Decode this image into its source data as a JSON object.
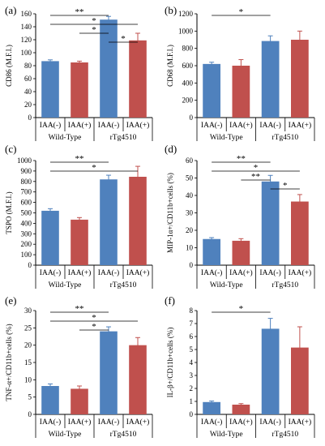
{
  "colors": {
    "blue": "#4f81bd",
    "red": "#c0504d",
    "axis": "#000000"
  },
  "chart_data": [
    {
      "type": "bar",
      "panel_label": "(a)",
      "ylabel": "CD86 (M.F.I.)",
      "ylim": [
        0,
        160
      ],
      "yticks": [
        0,
        20,
        40,
        60,
        80,
        100,
        120,
        140,
        160
      ],
      "categories": [
        "IAA(-)",
        "IAA(+)",
        "IAA(-)",
        "IAA(+)"
      ],
      "groups": [
        "Wild-Type",
        "rTg4510"
      ],
      "values": [
        87,
        85,
        151,
        119
      ],
      "errors": [
        2,
        2,
        5,
        11
      ],
      "bar_colors": [
        "blue",
        "red",
        "blue",
        "red"
      ],
      "significance": [
        {
          "from": 0,
          "to": 2,
          "label": "**"
        },
        {
          "from": 0,
          "to": 3,
          "label": "*"
        },
        {
          "from": 1,
          "to": 2,
          "label": "*"
        },
        {
          "from": 2,
          "to": 3,
          "label": "*"
        }
      ]
    },
    {
      "type": "bar",
      "panel_label": "(b)",
      "ylabel": "CD68 (M.F.I.)",
      "ylim": [
        0,
        1200
      ],
      "yticks": [
        0,
        200,
        400,
        600,
        800,
        1000,
        1200
      ],
      "categories": [
        "IAA(-)",
        "IAA(+)",
        "IAA(-)",
        "IAA(+)"
      ],
      "groups": [
        "Wild-Type",
        "rTg4510"
      ],
      "values": [
        620,
        600,
        885,
        900
      ],
      "errors": [
        20,
        70,
        60,
        100
      ],
      "bar_colors": [
        "blue",
        "red",
        "blue",
        "red"
      ],
      "significance": [
        {
          "from": 0,
          "to": 2,
          "label": "*"
        }
      ]
    },
    {
      "type": "bar",
      "panel_label": "(c)",
      "ylabel": "TSPO (M.F.I.)",
      "ylim": [
        0,
        1000
      ],
      "yticks": [
        0,
        100,
        200,
        300,
        400,
        500,
        600,
        700,
        800,
        900,
        1000
      ],
      "categories": [
        "IAA(-)",
        "IAA(+)",
        "IAA(-)",
        "IAA(+)"
      ],
      "groups": [
        "Wild-Type",
        "rTg4510"
      ],
      "values": [
        520,
        435,
        820,
        845
      ],
      "errors": [
        20,
        20,
        40,
        100
      ],
      "bar_colors": [
        "blue",
        "red",
        "blue",
        "red"
      ],
      "significance": [
        {
          "from": 0,
          "to": 2,
          "label": "**"
        },
        {
          "from": 0,
          "to": 3,
          "label": "*"
        }
      ]
    },
    {
      "type": "bar",
      "panel_label": "(d)",
      "ylabel": "MIP-1α+/CD11b+cells (%)",
      "ylim": [
        0,
        60
      ],
      "yticks": [
        0,
        10,
        20,
        30,
        40,
        50,
        60
      ],
      "categories": [
        "IAA(-)",
        "IAA(+)",
        "IAA(-)",
        "IAA(+)"
      ],
      "groups": [
        "Wild-Type",
        "rTg4510"
      ],
      "values": [
        15,
        14,
        48,
        36.5
      ],
      "errors": [
        0.8,
        1.2,
        3.5,
        4
      ],
      "bar_colors": [
        "blue",
        "red",
        "blue",
        "red"
      ],
      "significance": [
        {
          "from": 0,
          "to": 2,
          "label": "**"
        },
        {
          "from": 0,
          "to": 3,
          "label": "*"
        },
        {
          "from": 1,
          "to": 2,
          "label": "**"
        },
        {
          "from": 2,
          "to": 3,
          "label": "*"
        }
      ]
    },
    {
      "type": "bar",
      "panel_label": "(e)",
      "ylabel": "TNF-α+/CD11b+cells (%)",
      "ylim": [
        0,
        30
      ],
      "yticks": [
        0,
        5,
        10,
        15,
        20,
        25,
        30
      ],
      "categories": [
        "IAA(-)",
        "IAA(+)",
        "IAA(-)",
        "IAA(+)"
      ],
      "groups": [
        "Wild-Type",
        "rTg4510"
      ],
      "values": [
        8.2,
        7.4,
        24,
        20
      ],
      "errors": [
        0.6,
        0.8,
        1.3,
        2.2
      ],
      "bar_colors": [
        "blue",
        "red",
        "blue",
        "red"
      ],
      "significance": [
        {
          "from": 0,
          "to": 2,
          "label": "**"
        },
        {
          "from": 0,
          "to": 3,
          "label": "*"
        },
        {
          "from": 1,
          "to": 2,
          "label": "*"
        }
      ]
    },
    {
      "type": "bar",
      "panel_label": "(f)",
      "ylabel": "IL-β+/CD11b+cells (%)",
      "ylim": [
        0,
        8
      ],
      "yticks": [
        0,
        1,
        2,
        3,
        4,
        5,
        6,
        7,
        8
      ],
      "categories": [
        "IAA(-)",
        "IAA(+)",
        "IAA(-)",
        "IAA(+)"
      ],
      "groups": [
        "Wild-Type",
        "rTg4510"
      ],
      "values": [
        0.95,
        0.75,
        6.6,
        5.15
      ],
      "errors": [
        0.08,
        0.08,
        0.8,
        1.6
      ],
      "bar_colors": [
        "blue",
        "red",
        "blue",
        "red"
      ],
      "significance": [
        {
          "from": 0,
          "to": 2,
          "label": "*"
        }
      ]
    }
  ]
}
